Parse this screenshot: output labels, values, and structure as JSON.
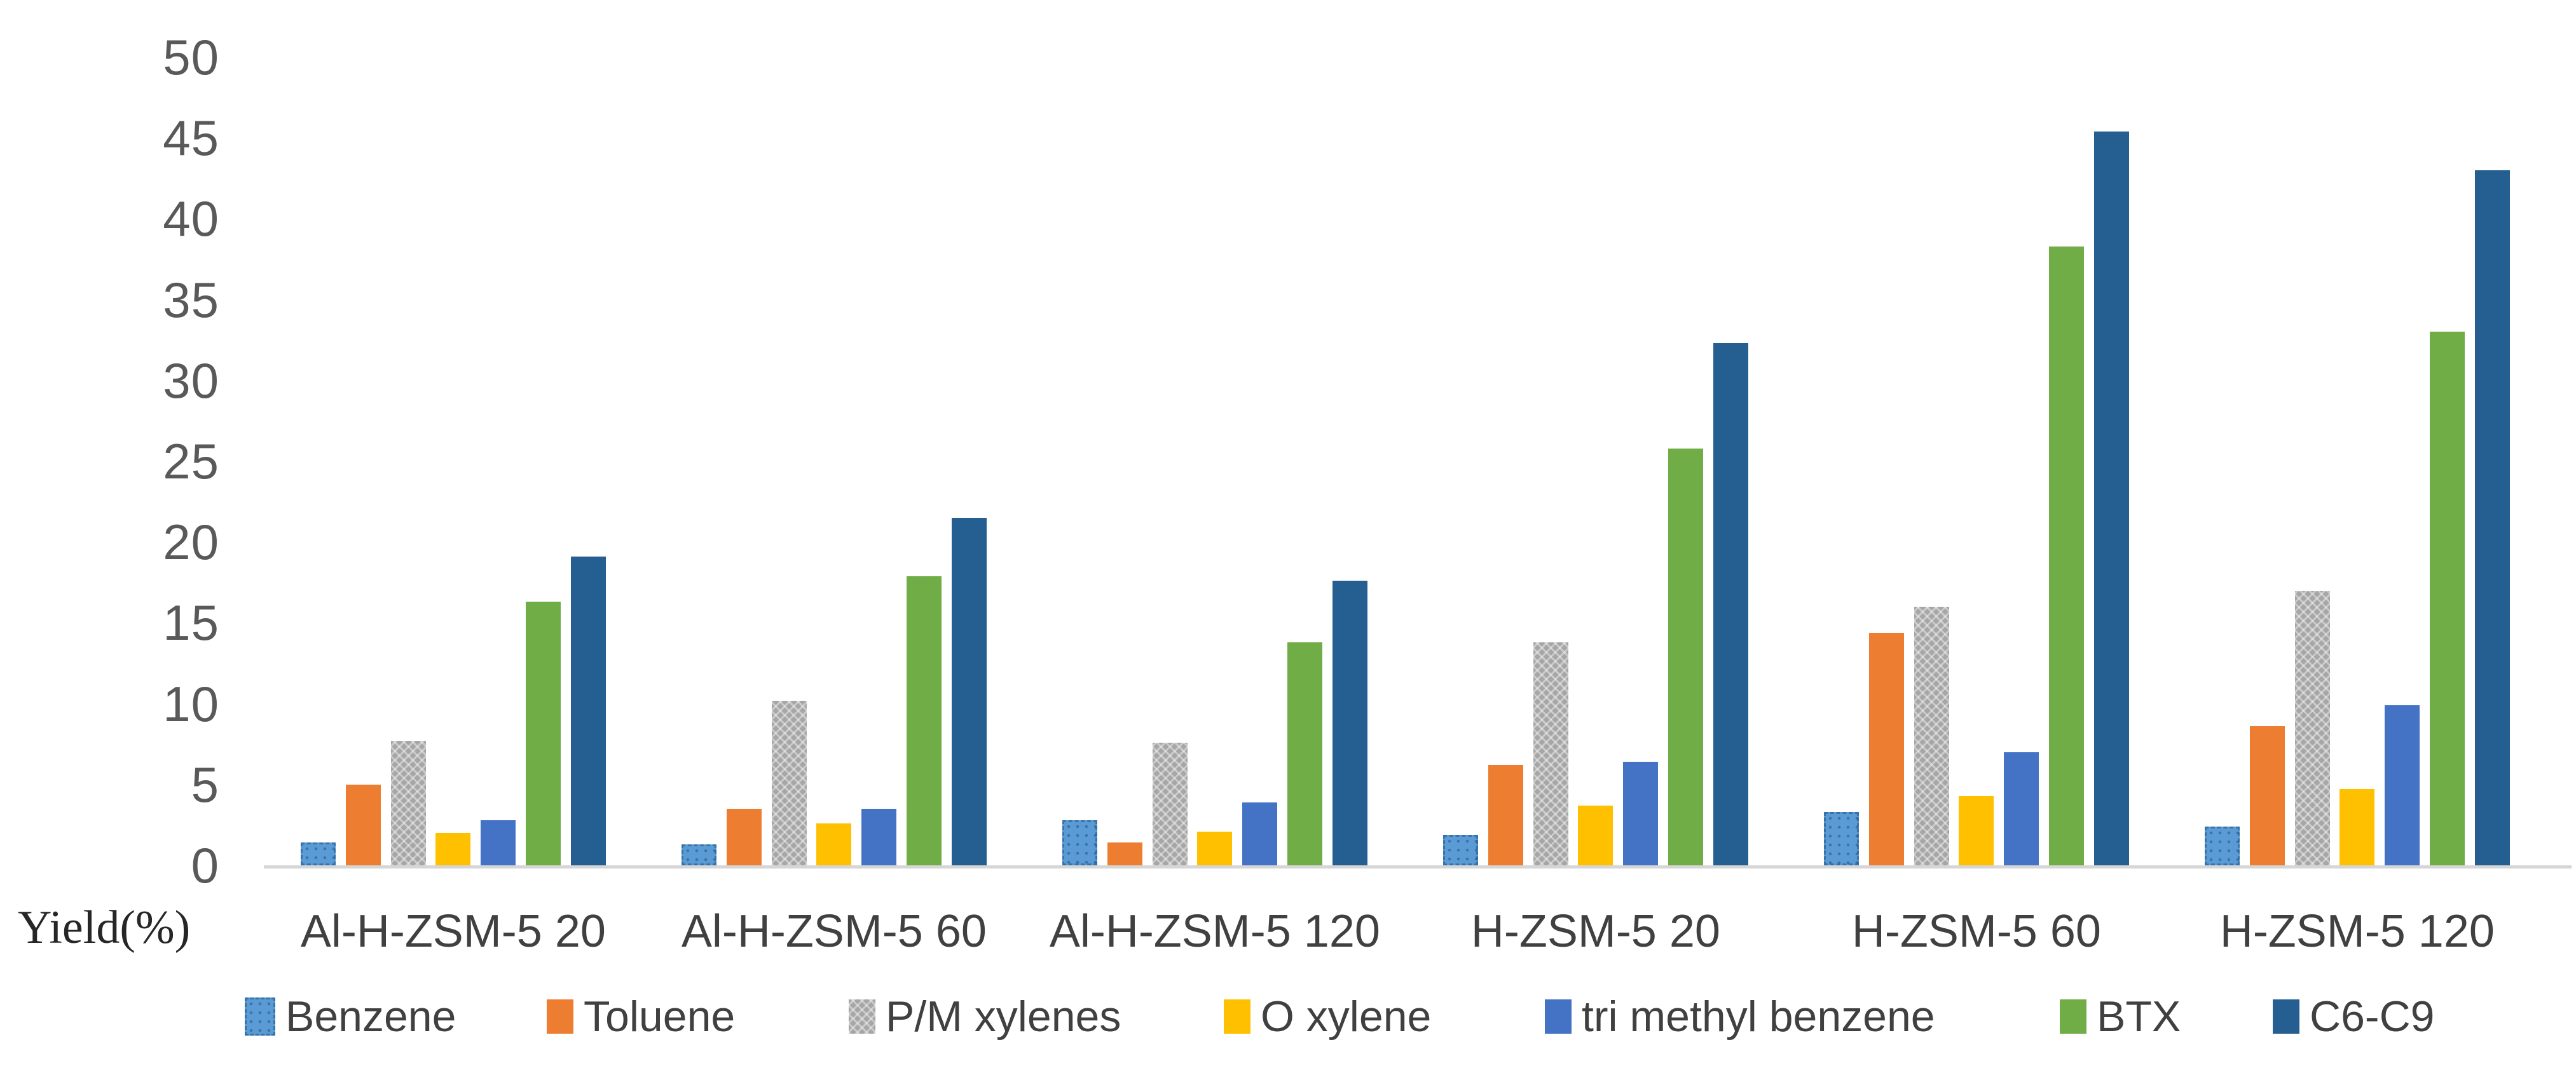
{
  "chart_data": {
    "type": "bar",
    "title": "",
    "xlabel": "",
    "ylabel": "Yield(%)",
    "ylim": [
      0,
      50
    ],
    "ytick_step": 5,
    "yticks": [
      "0",
      "5",
      "10",
      "15",
      "20",
      "25",
      "30",
      "35",
      "40",
      "45",
      "50"
    ],
    "grid": false,
    "legend_position": "bottom",
    "categories": [
      "Al-H-ZSM-5 20",
      "Al-H-ZSM-5 60",
      "Al-H-ZSM-5 120",
      "H-ZSM-5 20",
      "H-ZSM-5 60",
      "H-ZSM-5 120"
    ],
    "series": [
      {
        "name": "Benzene",
        "color": "#5B9BD5",
        "pattern": "dots",
        "values": [
          1.4,
          1.3,
          2.8,
          1.9,
          3.3,
          2.4
        ]
      },
      {
        "name": "Toluene",
        "color": "#ED7D31",
        "pattern": "solid",
        "values": [
          5.0,
          3.5,
          1.4,
          6.2,
          14.4,
          8.6
        ]
      },
      {
        "name": "P/M xylenes",
        "color": "#A6A6A6",
        "pattern": "zigzag",
        "values": [
          7.7,
          10.2,
          7.6,
          13.8,
          16.0,
          17.0
        ]
      },
      {
        "name": "O xylene",
        "color": "#FFC000",
        "pattern": "solid",
        "values": [
          2.0,
          2.6,
          2.1,
          3.7,
          4.3,
          4.7
        ]
      },
      {
        "name": "tri methyl benzene",
        "color": "#4472C4",
        "pattern": "solid",
        "values": [
          2.8,
          3.5,
          3.9,
          6.4,
          7.0,
          9.9
        ]
      },
      {
        "name": "BTX",
        "color": "#70AD47",
        "pattern": "solid",
        "values": [
          16.3,
          17.9,
          13.8,
          25.8,
          38.3,
          33.0
        ]
      },
      {
        "name": "C6-C9",
        "color": "#255E91",
        "pattern": "solid",
        "values": [
          19.1,
          21.5,
          17.6,
          32.3,
          45.4,
          43.0
        ]
      }
    ],
    "axis_color": "#D6D6D6",
    "tick_label_color": "#595959",
    "category_label_color": "#404040"
  }
}
